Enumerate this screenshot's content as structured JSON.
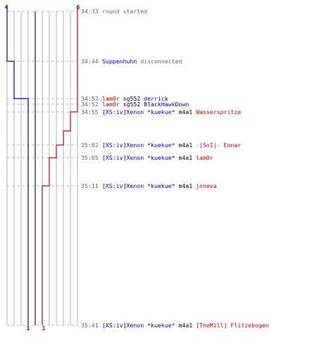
{
  "colors": {
    "blue": "#0000cc",
    "red": "#cc0000",
    "grid": "#b0b0b0",
    "mid_line": "#555555",
    "dash": "#bbbbbb",
    "time": "#666666",
    "note": "#666666",
    "text": "#000000"
  },
  "chart_data": {
    "type": "timeline",
    "counts": {
      "blue_start": "4",
      "red_start": "6",
      "blue_end": "1",
      "red_end": "1"
    },
    "events": [
      {
        "time": "34:33",
        "parts": [
          {
            "t": "round started",
            "c": "note"
          }
        ]
      },
      {
        "time": "34:44",
        "parts": [
          {
            "t": "Suppenhuhn",
            "c": "blue"
          },
          {
            "t": " disconnected",
            "c": "note"
          }
        ]
      },
      {
        "time": "34:52",
        "parts": [
          {
            "t": "lam0r",
            "c": "red"
          },
          {
            "t": " sg552 ",
            "c": "text"
          },
          {
            "t": "derrick",
            "c": "blue"
          }
        ]
      },
      {
        "time": "34:52",
        "parts": [
          {
            "t": "lam0r",
            "c": "red"
          },
          {
            "t": " sg552 ",
            "c": "text"
          },
          {
            "t": "BlackHawkDown",
            "c": "blue"
          }
        ]
      },
      {
        "time": "34:55",
        "parts": [
          {
            "t": "[XS:iv]Xenon *kuekue*",
            "c": "blue"
          },
          {
            "t": " m4a1 ",
            "c": "text"
          },
          {
            "t": "Wasserspritze",
            "c": "red"
          }
        ]
      },
      {
        "time": "35:02",
        "parts": [
          {
            "t": "[XS:iv]Xenon *kuekue*",
            "c": "blue"
          },
          {
            "t": " m4a1 ",
            "c": "text"
          },
          {
            "t": "-|SoI|- Eonar",
            "c": "red"
          }
        ]
      },
      {
        "time": "35:05",
        "parts": [
          {
            "t": "[XS:iv]Xenon *kuekue*",
            "c": "blue"
          },
          {
            "t": " m4a1 ",
            "c": "text"
          },
          {
            "t": "lam0r",
            "c": "red"
          }
        ]
      },
      {
        "time": "35:11",
        "parts": [
          {
            "t": "[XS:iv]Xenon *kuekue*",
            "c": "blue"
          },
          {
            "t": " m4a1 ",
            "c": "text"
          },
          {
            "t": "joneva",
            "c": "red"
          }
        ]
      },
      {
        "time": "35:41",
        "parts": [
          {
            "t": "[XS:iv]Xenon *kuekue*",
            "c": "blue"
          },
          {
            "t": " m4a1 ",
            "c": "text"
          },
          {
            "t": "[TheMill] Flitzebogen",
            "c": "red"
          }
        ]
      }
    ]
  }
}
